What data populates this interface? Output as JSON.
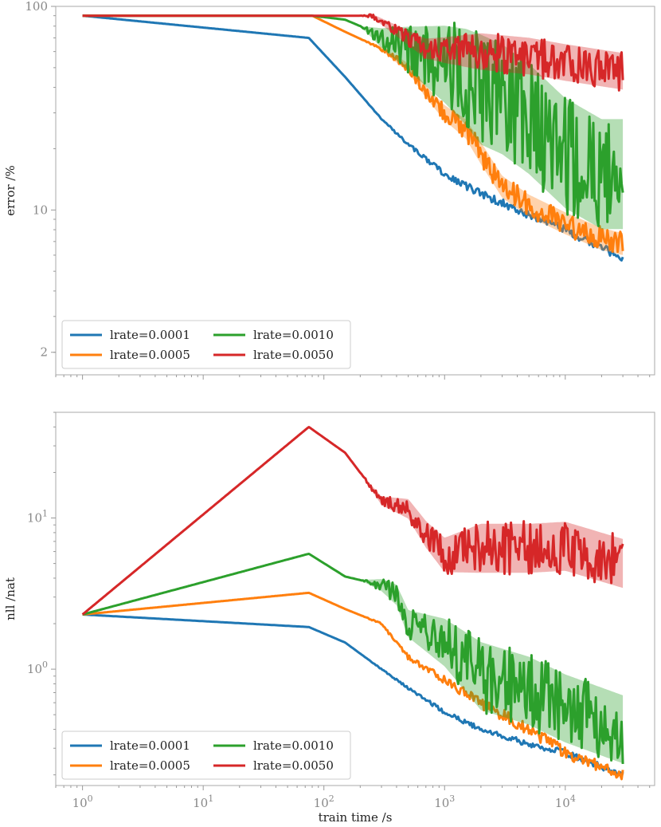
{
  "figure": {
    "xlabel": "train time /s"
  },
  "colors": {
    "lrate=0.0001": "#1f77b4",
    "lrate=0.0005": "#ff7f0e",
    "lrate=0.0010": "#2ca02c",
    "lrate=0.0050": "#d62728"
  },
  "chart_data": [
    {
      "type": "line",
      "xscale": "log",
      "yscale": "log",
      "xlim": [
        0.6,
        55000
      ],
      "ylim": [
        1.55,
        100
      ],
      "xlabel": "",
      "ylabel": "error /%",
      "yticks": [
        {
          "value": 100,
          "label": "100"
        },
        {
          "value": 10,
          "label": "10"
        },
        {
          "value": 2,
          "label": "2"
        }
      ],
      "xticklabels_visible": false,
      "legend": {
        "placement": "lower-left",
        "columns": 2
      },
      "series": [
        {
          "name": "lrate=0.0001",
          "color": "#1f77b4",
          "band": 0.02,
          "x": [
            1,
            75,
            150,
            300,
            500,
            1000,
            2000,
            5000,
            10000,
            30000
          ],
          "y": [
            90,
            70,
            45,
            28,
            21,
            15,
            12,
            9.5,
            8,
            5.8
          ]
        },
        {
          "name": "lrate=0.0005",
          "color": "#ff7f0e",
          "band": 0.06,
          "x": [
            1,
            80,
            150,
            300,
            500,
            700,
            1000,
            1500,
            2000,
            3000,
            5000,
            10000,
            20000,
            30000
          ],
          "y": [
            90,
            90,
            75,
            62,
            50,
            38,
            30,
            25,
            19,
            13,
            10.5,
            8.6,
            7.2,
            6.8
          ]
        },
        {
          "name": "lrate=0.0010",
          "color": "#2ca02c",
          "band": 0.3,
          "x": [
            1,
            80,
            150,
            200,
            300,
            500,
            1000,
            1500,
            2000,
            3000,
            5000,
            10000,
            20000,
            30000
          ],
          "y": [
            90,
            90,
            86,
            80,
            70,
            62,
            52,
            45,
            39,
            35,
            28,
            19,
            15,
            15
          ]
        },
        {
          "name": "lrate=0.0050",
          "color": "#d62728",
          "band": 0.1,
          "x": [
            1,
            100,
            250,
            400,
            700,
            1000,
            2000,
            5000,
            10000,
            30000
          ],
          "y": [
            90,
            90,
            90,
            76,
            62,
            61,
            60,
            57,
            53,
            48
          ]
        }
      ]
    },
    {
      "type": "line",
      "xscale": "log",
      "yscale": "log",
      "xlim": [
        0.6,
        55000
      ],
      "ylim": [
        0.17,
        50
      ],
      "xlabel": "train time /s",
      "ylabel": "nll /nat",
      "yticks": [
        {
          "value": 10,
          "label": "10^1"
        },
        {
          "value": 1,
          "label": "10^0"
        }
      ],
      "xticks": [
        {
          "value": 1,
          "label": "10^0"
        },
        {
          "value": 10,
          "label": "10^1"
        },
        {
          "value": 100,
          "label": "10^2"
        },
        {
          "value": 1000,
          "label": "10^3"
        },
        {
          "value": 10000,
          "label": "10^4"
        }
      ],
      "legend": {
        "placement": "lower-left",
        "columns": 2
      },
      "series": [
        {
          "name": "lrate=0.0001",
          "color": "#1f77b4",
          "band": 0.02,
          "x": [
            1,
            75,
            150,
            300,
            500,
            1000,
            2000,
            5000,
            10000,
            30000
          ],
          "y": [
            2.3,
            1.9,
            1.5,
            1.0,
            0.75,
            0.52,
            0.4,
            0.32,
            0.28,
            0.2
          ]
        },
        {
          "name": "lrate=0.0005",
          "color": "#ff7f0e",
          "band": 0.04,
          "x": [
            1,
            75,
            150,
            300,
            500,
            1000,
            2000,
            5000,
            10000,
            30000
          ],
          "y": [
            2.3,
            3.2,
            2.5,
            2.0,
            1.2,
            0.85,
            0.6,
            0.4,
            0.28,
            0.2
          ]
        },
        {
          "name": "lrate=0.0010",
          "color": "#2ca02c",
          "band": 0.25,
          "x": [
            1,
            75,
            150,
            300,
            400,
            500,
            1000,
            2000,
            5000,
            10000,
            30000
          ],
          "y": [
            2.3,
            5.8,
            4.1,
            3.6,
            3.1,
            2.0,
            1.5,
            0.9,
            0.72,
            0.55,
            0.4
          ]
        },
        {
          "name": "lrate=0.0050",
          "color": "#d62728",
          "band": 0.18,
          "x": [
            1,
            75,
            150,
            300,
            500,
            700,
            1000,
            2000,
            5000,
            10000,
            30000
          ],
          "y": [
            2.3,
            40,
            27,
            13,
            11.5,
            7.8,
            5.7,
            6.3,
            6.3,
            6.5,
            5.0
          ]
        }
      ]
    }
  ]
}
